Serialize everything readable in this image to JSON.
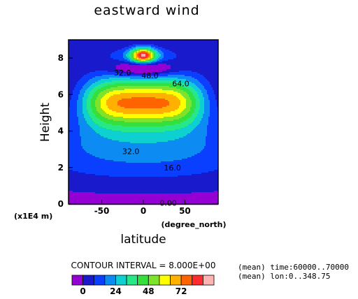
{
  "chart_data": {
    "type": "heatmap",
    "title": "eastward wind",
    "xlabel": "latitude",
    "x_unit": "(degree_north)",
    "ylabel": "Height",
    "y_unit": "(x1E4 m)",
    "xlim": [
      -90,
      90
    ],
    "ylim": [
      0,
      9
    ],
    "x_ticks": [
      -50,
      0,
      50
    ],
    "y_ticks": [
      0,
      2,
      4,
      6,
      8
    ],
    "contour_interval_label": "CONTOUR INTERVAL = 8.000E+00",
    "contour_labels": [
      {
        "text": "0.00",
        "lat": 30,
        "height": 0.05
      },
      {
        "text": "16.0",
        "lat": 35,
        "height": 2.0
      },
      {
        "text": "32.0",
        "lat": -15,
        "height": 2.9
      },
      {
        "text": "32.0",
        "lat": -25,
        "height": 7.2
      },
      {
        "text": "48.0",
        "lat": 8,
        "height": 7.05
      },
      {
        "text": "64.0",
        "lat": 45,
        "height": 6.6
      }
    ],
    "colorbar": {
      "ticks": [
        0,
        24,
        48,
        72
      ],
      "colors": [
        "#9400d3",
        "#1a1acd",
        "#0a3fff",
        "#0c8cf2",
        "#0ed0d0",
        "#27e889",
        "#33e03d",
        "#7fe32b",
        "#ffff00",
        "#ffb000",
        "#ff6400",
        "#ff2d2d",
        "#ffb3b3"
      ]
    },
    "annotations": [
      "(mean) time:60000..70000",
      "(mean) lon:0..348.75"
    ]
  }
}
